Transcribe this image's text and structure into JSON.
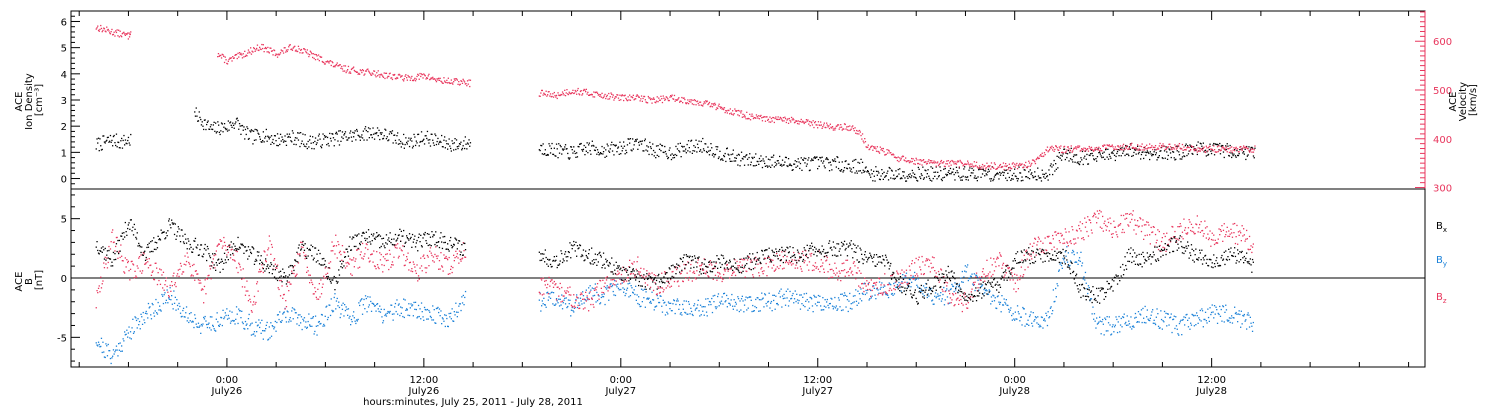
{
  "chart_data": [
    {
      "type": "scatter",
      "panel": "top",
      "left_axis": {
        "label_lines": [
          "ACE",
          "Ion Density",
          "[cm⁻³]"
        ],
        "ylim": [
          -0.4,
          6.4
        ],
        "ticks": [
          "0",
          "1",
          "2",
          "3",
          "4",
          "5",
          "6"
        ]
      },
      "right_axis": {
        "label_lines": [
          "ACE",
          "Velocity",
          "[km/s]"
        ],
        "ylim": [
          297,
          662
        ],
        "ticks": [
          "300",
          "400",
          "500",
          "600"
        ],
        "color": "#e8365d"
      },
      "series": [
        {
          "key": "density",
          "axis": "left",
          "color": "#000000",
          "x": [
            -8.0,
            -7.0,
            -6.5,
            -5.9,
            -2.0,
            -1.0,
            0.0,
            0.5,
            1.0,
            1.5,
            2.0,
            3.0,
            4.0,
            5.0,
            6.0,
            7.0,
            8.0,
            9.0,
            10.0,
            11.0,
            12.0,
            13.0,
            14.0,
            14.8,
            19.0,
            20.0,
            21.0,
            22.0,
            23.0,
            24.0,
            25.0,
            26.0,
            27.0,
            28.0,
            29.0,
            30.0,
            31.0,
            32.0,
            33.0,
            34.0,
            35.0,
            36.0,
            37.0,
            38.0,
            38.6,
            39.0,
            40.0,
            41.0,
            42.0,
            43.0,
            44.0,
            45.0,
            46.0,
            47.0,
            48.0,
            49.0,
            50.0,
            51.0,
            52.0,
            53.0,
            54.0,
            55.0,
            56.0,
            57.0,
            58.0,
            59.0,
            60.0,
            61.0,
            62.0,
            62.6
          ],
          "y": [
            1.3,
            1.5,
            1.4,
            1.5,
            2.5,
            1.9,
            2.0,
            2.2,
            1.8,
            1.6,
            1.7,
            1.5,
            1.6,
            1.4,
            1.5,
            1.6,
            1.7,
            1.8,
            1.6,
            1.4,
            1.6,
            1.4,
            1.3,
            1.4,
            1.2,
            1.1,
            1.0,
            1.2,
            1.1,
            1.2,
            1.4,
            1.1,
            1.0,
            1.2,
            1.3,
            1.0,
            0.8,
            0.7,
            0.7,
            0.6,
            0.6,
            0.6,
            0.6,
            0.5,
            0.5,
            0.2,
            0.2,
            0.2,
            0.2,
            0.2,
            0.2,
            0.2,
            0.2,
            0.2,
            0.2,
            0.2,
            0.2,
            1.0,
            0.8,
            0.9,
            0.9,
            1.1,
            1.0,
            1.0,
            1.0,
            1.2,
            1.1,
            1.1,
            1.0,
            1.1
          ]
        },
        {
          "key": "velocity",
          "axis": "right",
          "color": "#e8365d",
          "x": [
            -8.0,
            -7.0,
            -6.0,
            -5.9,
            -0.6,
            0.0,
            1.0,
            2.0,
            3.0,
            4.0,
            5.0,
            6.0,
            7.0,
            8.0,
            9.0,
            10.0,
            11.0,
            12.0,
            13.0,
            14.0,
            14.8,
            19.0,
            20.0,
            21.0,
            22.0,
            23.0,
            24.0,
            25.0,
            26.0,
            27.0,
            28.0,
            29.0,
            30.0,
            31.0,
            32.0,
            33.0,
            34.0,
            35.0,
            36.0,
            37.0,
            38.0,
            38.6,
            39.0,
            40.0,
            41.0,
            42.0,
            43.0,
            44.0,
            45.0,
            46.0,
            47.0,
            48.0,
            49.0,
            50.0,
            51.0,
            52.0,
            53.0,
            54.0,
            55.0,
            56.0,
            57.0,
            58.0,
            59.0,
            60.0,
            61.0,
            62.0,
            62.6
          ],
          "y": [
            630,
            620,
            612,
            625,
            575,
            560,
            575,
            590,
            575,
            590,
            575,
            560,
            545,
            540,
            535,
            530,
            525,
            530,
            520,
            518,
            515,
            495,
            490,
            500,
            495,
            490,
            485,
            485,
            480,
            485,
            480,
            475,
            465,
            455,
            445,
            440,
            440,
            435,
            430,
            425,
            425,
            410,
            385,
            375,
            360,
            355,
            350,
            350,
            350,
            345,
            345,
            345,
            350,
            380,
            380,
            380,
            380,
            385,
            385,
            385,
            385,
            385,
            380,
            380,
            380,
            380,
            380
          ]
        }
      ]
    },
    {
      "type": "scatter",
      "panel": "bottom",
      "left_axis": {
        "label_lines": [
          "ACE",
          "B",
          "[nT]"
        ],
        "ylim": [
          -7.5,
          7.5
        ],
        "ticks": [
          "-5",
          "0",
          "5"
        ]
      },
      "legend": [
        {
          "base": "B",
          "sub": "x",
          "color": "#000000"
        },
        {
          "base": "B",
          "sub": "y",
          "color": "#1a81d8"
        },
        {
          "base": "B",
          "sub": "z",
          "color": "#e8365d"
        }
      ],
      "series": [
        {
          "key": "Bx",
          "color": "#000000",
          "x": [
            -8.0,
            -7.0,
            -6.0,
            -5.0,
            -3.5,
            -2.5,
            -1.5,
            -0.5,
            0.5,
            1.5,
            2.5,
            3.5,
            4.5,
            5.5,
            6.5,
            7.5,
            8.5,
            9.5,
            10.5,
            11.5,
            12.5,
            13.5,
            14.5,
            19.0,
            20.0,
            21.0,
            22.0,
            23.0,
            24.0,
            25.0,
            26.0,
            27.0,
            28.0,
            29.0,
            30.0,
            31.0,
            32.0,
            33.0,
            34.0,
            35.0,
            36.0,
            37.0,
            38.0,
            39.0,
            40.0,
            41.0,
            42.0,
            43.0,
            44.0,
            45.0,
            46.0,
            47.0,
            48.0,
            49.0,
            50.0,
            51.0,
            52.0,
            53.0,
            54.0,
            55.0,
            56.0,
            57.0,
            58.0,
            59.0,
            60.0,
            61.0,
            62.0,
            62.5
          ],
          "y": [
            3.0,
            1.5,
            4.8,
            2.0,
            4.5,
            3.0,
            2.5,
            1.0,
            3.0,
            2.0,
            1.0,
            0.0,
            2.5,
            2.0,
            -0.5,
            3.0,
            3.5,
            3.0,
            3.5,
            3.0,
            3.5,
            3.0,
            2.5,
            2.0,
            1.5,
            2.5,
            2.0,
            1.5,
            0.5,
            0.0,
            -0.5,
            0.5,
            1.5,
            1.0,
            1.5,
            1.0,
            1.5,
            2.0,
            2.0,
            2.0,
            2.5,
            2.5,
            2.5,
            1.5,
            1.5,
            -0.5,
            -1.5,
            -0.5,
            0.5,
            -1.5,
            -1.0,
            -0.5,
            1.5,
            2.0,
            2.0,
            2.0,
            -1.0,
            -1.5,
            -0.5,
            2.0,
            1.5,
            2.5,
            3.0,
            2.0,
            1.5,
            2.0,
            2.0,
            1.0
          ]
        },
        {
          "key": "By",
          "color": "#1a81d8",
          "x": [
            -8.0,
            -7.5,
            -7.0,
            -6.5,
            -6.0,
            -5.0,
            -3.5,
            -2.5,
            -1.5,
            -0.5,
            0.5,
            1.5,
            2.5,
            3.5,
            4.5,
            5.5,
            6.5,
            7.5,
            8.5,
            9.5,
            10.5,
            11.5,
            12.5,
            13.5,
            14.5,
            19.0,
            20.0,
            21.0,
            22.0,
            23.0,
            24.0,
            25.0,
            26.0,
            27.0,
            28.0,
            29.0,
            30.0,
            31.0,
            32.0,
            33.0,
            34.0,
            35.0,
            36.0,
            37.0,
            38.0,
            39.0,
            40.0,
            41.0,
            42.0,
            43.0,
            44.0,
            45.0,
            46.0,
            47.0,
            48.0,
            49.0,
            50.0,
            51.0,
            52.0,
            53.0,
            54.0,
            55.0,
            56.0,
            57.0,
            58.0,
            59.0,
            60.0,
            61.0,
            62.0,
            62.5
          ],
          "y": [
            -5.0,
            -6.0,
            -6.5,
            -5.5,
            -4.5,
            -3.0,
            -1.5,
            -3.0,
            -4.0,
            -3.5,
            -3.0,
            -4.0,
            -4.5,
            -3.0,
            -3.5,
            -4.0,
            -2.0,
            -3.5,
            -2.0,
            -3.0,
            -2.5,
            -2.5,
            -3.0,
            -3.5,
            -1.5,
            -2.0,
            -1.5,
            -2.5,
            -1.0,
            -1.5,
            -0.5,
            -1.5,
            -2.0,
            -2.5,
            -2.5,
            -2.5,
            -2.0,
            -2.0,
            -2.0,
            -2.0,
            -1.5,
            -2.0,
            -2.0,
            -2.0,
            -2.0,
            -1.0,
            -1.0,
            -0.5,
            0.0,
            -1.5,
            -1.5,
            0.5,
            -1.0,
            -2.0,
            -3.0,
            -3.5,
            -3.5,
            2.0,
            1.5,
            -4.0,
            -4.0,
            -3.5,
            -3.0,
            -3.5,
            -4.0,
            -3.5,
            -3.0,
            -3.0,
            -3.5,
            -4.0
          ]
        },
        {
          "key": "Bz",
          "color": "#e8365d",
          "x": [
            -8.0,
            -7.0,
            -6.0,
            -5.0,
            -3.5,
            -2.5,
            -1.5,
            -0.5,
            0.5,
            1.5,
            2.5,
            3.5,
            4.5,
            5.5,
            6.5,
            7.5,
            8.5,
            9.5,
            10.5,
            11.5,
            12.5,
            13.5,
            14.5,
            19.0,
            20.0,
            21.0,
            22.0,
            23.0,
            24.0,
            25.0,
            26.0,
            27.0,
            28.0,
            29.0,
            30.0,
            31.0,
            32.0,
            33.0,
            34.0,
            35.0,
            36.0,
            37.0,
            38.0,
            39.0,
            40.0,
            41.0,
            42.0,
            43.0,
            44.0,
            45.0,
            46.0,
            47.0,
            48.0,
            49.0,
            50.0,
            51.0,
            52.0,
            53.0,
            54.0,
            55.0,
            56.0,
            57.0,
            58.0,
            59.0,
            60.0,
            61.0,
            62.0,
            62.5
          ],
          "y": [
            -2.0,
            3.5,
            0.5,
            1.5,
            -1.0,
            2.0,
            -1.5,
            3.0,
            2.0,
            -2.5,
            3.0,
            -2.0,
            2.5,
            -1.5,
            3.0,
            1.0,
            2.5,
            1.0,
            2.5,
            0.5,
            2.0,
            1.0,
            2.5,
            -0.5,
            -1.0,
            -1.5,
            -2.0,
            -0.5,
            0.5,
            1.0,
            -0.5,
            0.0,
            0.5,
            1.0,
            0.5,
            1.0,
            1.0,
            1.0,
            1.5,
            1.5,
            1.5,
            0.5,
            1.0,
            -1.0,
            -0.5,
            0.0,
            1.0,
            1.5,
            -1.5,
            -2.0,
            0.5,
            1.5,
            -0.5,
            2.5,
            3.0,
            3.5,
            4.0,
            5.0,
            4.0,
            5.0,
            4.0,
            3.0,
            4.0,
            4.5,
            3.5,
            4.0,
            3.5,
            2.5
          ]
        }
      ]
    }
  ],
  "x_axis": {
    "xlim": [
      -9.5,
      73.0
    ],
    "major_ticks": [
      {
        "x": 0,
        "time": "0:00",
        "date": "July26"
      },
      {
        "x": 12,
        "time": "12:00",
        "date": "July26"
      },
      {
        "x": 24,
        "time": "0:00",
        "date": "July27"
      },
      {
        "x": 36,
        "time": "12:00",
        "date": "July27"
      },
      {
        "x": 48,
        "time": "0:00",
        "date": "July28"
      },
      {
        "x": 60,
        "time": "12:00",
        "date": "July28"
      }
    ],
    "title": "hours:minutes, July 25, 2011 - July 28, 2011"
  }
}
